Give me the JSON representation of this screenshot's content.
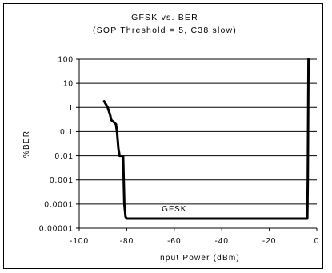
{
  "chart_data": {
    "type": "line",
    "title": "GFSK vs. BER",
    "subtitle": "(SOP Threshold = 5, C38 slow)",
    "xlabel": "Input Power (dBm)",
    "ylabel": "%BER",
    "x_scale": "linear",
    "y_scale": "log",
    "xlim": [
      -100,
      0
    ],
    "ylim": [
      1e-05,
      100
    ],
    "x_ticks": [
      -100,
      -80,
      -60,
      -40,
      -20,
      0
    ],
    "x_tick_labels": [
      "-100",
      "-80",
      "-60",
      "-40",
      "-20",
      "0"
    ],
    "y_ticks": [
      100,
      10,
      1,
      0.1,
      0.01,
      0.001,
      0.0001,
      1e-05
    ],
    "y_tick_labels": [
      "100",
      "10",
      "1",
      "0.1",
      "0.01",
      "0.001",
      "0.0001",
      "0.00001"
    ],
    "grid": "horizontal",
    "legend": "none",
    "series": [
      {
        "name": "GFSK",
        "label_position": [
          -60,
          5e-05
        ],
        "x": [
          -89.5,
          -88,
          -87,
          -86.5,
          -85.5,
          -84.5,
          -84,
          -83.5,
          -83,
          -82.5,
          -81.5,
          -81,
          -80.5,
          -80,
          -79.5,
          -70,
          -60,
          -50,
          -40,
          -30,
          -20,
          -10,
          -5,
          -4,
          -3.8,
          -3.5
        ],
        "y": [
          1.8,
          1,
          0.5,
          0.3,
          0.25,
          0.2,
          0.08,
          0.02,
          0.01,
          0.01,
          0.01,
          0.0001,
          3e-05,
          2.5e-05,
          2.5e-05,
          2.5e-05,
          2.5e-05,
          2.5e-05,
          2.5e-05,
          2.5e-05,
          2.5e-05,
          2.5e-05,
          2.5e-05,
          2.5e-05,
          0.001,
          100
        ]
      }
    ]
  },
  "colors": {
    "line": "#000000",
    "grid": "#000000",
    "background": "#ffffff"
  }
}
